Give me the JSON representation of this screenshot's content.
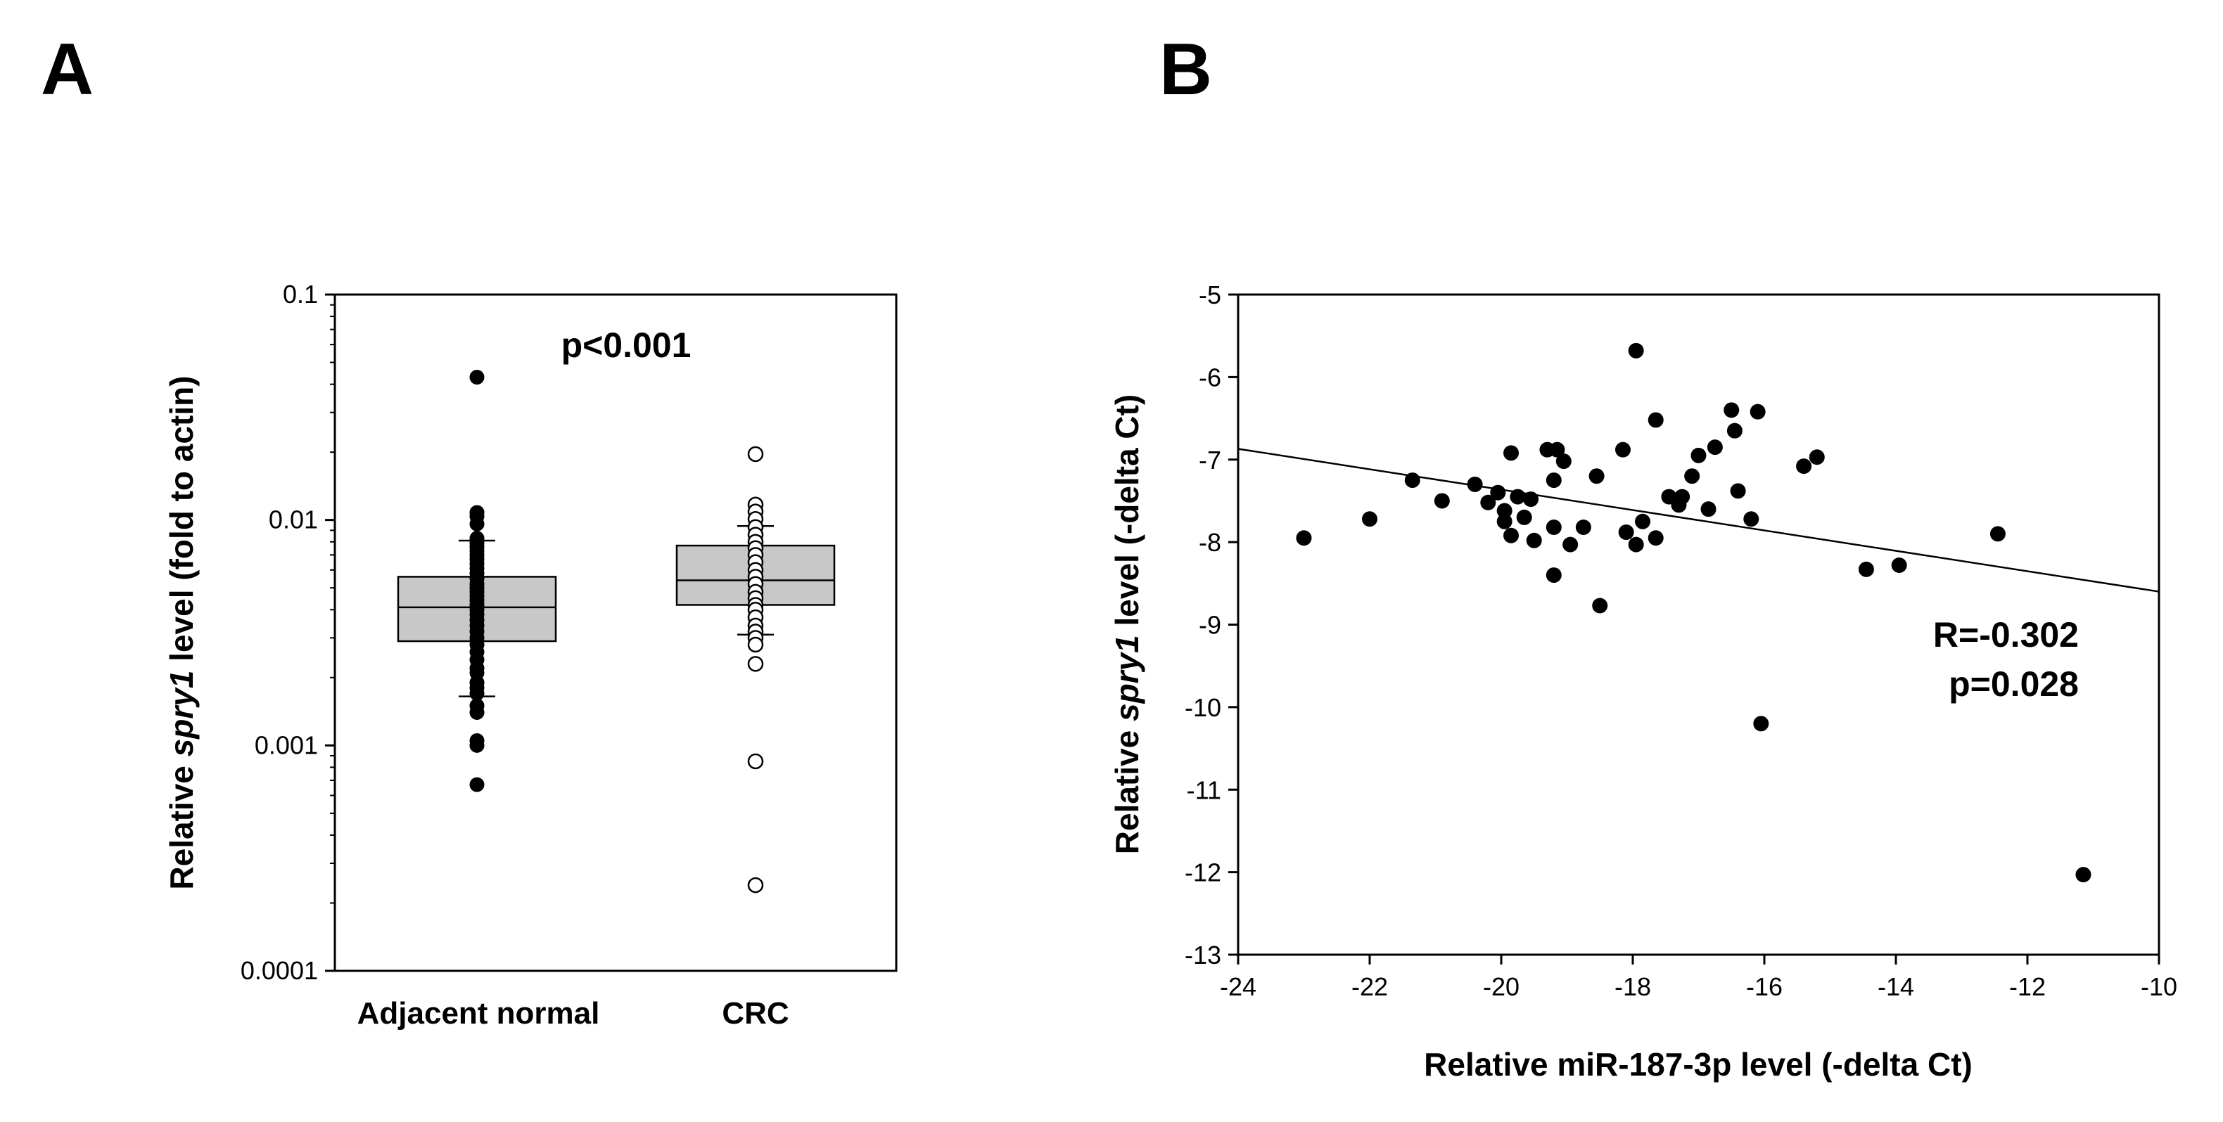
{
  "panels": {
    "a": "A",
    "b": "B"
  },
  "chart_data": [
    {
      "type": "box",
      "id": "A",
      "yscale": "log",
      "ylim": [
        0.0001,
        0.1
      ],
      "yticks": [
        "0.0001",
        "0.001",
        "0.01",
        "0.1"
      ],
      "ylabel_prefix": "Relative ",
      "ylabel_gene": "spry1",
      "ylabel_suffix": " level (fold to actin)",
      "annotation": "p<0.001",
      "categories": [
        "Adjacent normal",
        "CRC"
      ],
      "colors": {
        "box_fill": "#c8c8c8",
        "filled_marker": "#000000",
        "open_marker": "#ffffff"
      },
      "boxes": [
        {
          "category": "Adjacent normal",
          "q1": 0.0029,
          "median": 0.0041,
          "q3": 0.0056,
          "whisker_low": 0.00165,
          "whisker_high": 0.0081,
          "marker": "filled",
          "points": [
            0.043,
            0.0108,
            0.0104,
            0.0096,
            0.0083,
            0.0079,
            0.0076,
            0.0073,
            0.007,
            0.0067,
            0.0064,
            0.0061,
            0.0058,
            0.0055,
            0.0052,
            0.005,
            0.0048,
            0.0046,
            0.0044,
            0.0042,
            0.004,
            0.0038,
            0.0036,
            0.0034,
            0.0032,
            0.003,
            0.0028,
            0.0026,
            0.0024,
            0.0022,
            0.0021,
            0.0019,
            0.0018,
            0.0017,
            0.0015,
            0.0014,
            0.00105,
            0.001,
            0.00067
          ]
        },
        {
          "category": "CRC",
          "q1": 0.0042,
          "median": 0.0054,
          "q3": 0.0077,
          "whisker_low": 0.0031,
          "whisker_high": 0.0094,
          "marker": "open",
          "points": [
            0.0196,
            0.0117,
            0.0109,
            0.0101,
            0.0093,
            0.0086,
            0.008,
            0.0075,
            0.007,
            0.0065,
            0.006,
            0.0056,
            0.0052,
            0.0048,
            0.0045,
            0.0042,
            0.004,
            0.0037,
            0.0034,
            0.0032,
            0.003,
            0.0028,
            0.0023,
            0.00085,
            0.00024
          ]
        }
      ]
    },
    {
      "type": "scatter",
      "id": "B",
      "xlim": [
        -24,
        -10
      ],
      "ylim": [
        -13,
        -5
      ],
      "xticks": [
        -24,
        -22,
        -20,
        -18,
        -16,
        -14,
        -12,
        -10
      ],
      "yticks": [
        -5,
        -6,
        -7,
        -8,
        -9,
        -10,
        -11,
        -12,
        -13
      ],
      "xlabel": "Relative miR-187-3p level (-delta Ct)",
      "ylabel_prefix": "Relative ",
      "ylabel_gene": "spry1",
      "ylabel_suffix": " level (-delta Ct)",
      "annotation_r": "R=-0.302",
      "annotation_p": "p=0.028",
      "trendline": {
        "x": [
          -24,
          -10
        ],
        "y": [
          -6.87,
          -8.6
        ]
      },
      "points": [
        [
          -23.0,
          -7.95
        ],
        [
          -22.0,
          -7.72
        ],
        [
          -21.35,
          -7.25
        ],
        [
          -20.9,
          -7.5
        ],
        [
          -20.4,
          -7.3
        ],
        [
          -20.2,
          -7.52
        ],
        [
          -20.05,
          -7.4
        ],
        [
          -19.95,
          -7.62
        ],
        [
          -19.95,
          -7.75
        ],
        [
          -19.85,
          -7.92
        ],
        [
          -19.85,
          -6.92
        ],
        [
          -19.75,
          -7.45
        ],
        [
          -19.65,
          -7.7
        ],
        [
          -19.5,
          -7.98
        ],
        [
          -19.55,
          -7.48
        ],
        [
          -19.3,
          -6.88
        ],
        [
          -19.15,
          -6.88
        ],
        [
          -19.2,
          -7.25
        ],
        [
          -19.2,
          -7.82
        ],
        [
          -19.2,
          -8.4
        ],
        [
          -19.05,
          -7.02
        ],
        [
          -18.95,
          -8.03
        ],
        [
          -18.75,
          -7.82
        ],
        [
          -18.55,
          -7.2
        ],
        [
          -18.5,
          -8.77
        ],
        [
          -18.15,
          -6.88
        ],
        [
          -18.1,
          -7.88
        ],
        [
          -17.95,
          -5.68
        ],
        [
          -17.95,
          -8.03
        ],
        [
          -17.85,
          -7.75
        ],
        [
          -17.65,
          -6.52
        ],
        [
          -17.65,
          -7.95
        ],
        [
          -17.45,
          -7.45
        ],
        [
          -17.3,
          -7.55
        ],
        [
          -17.25,
          -7.45
        ],
        [
          -17.1,
          -7.2
        ],
        [
          -17.0,
          -6.95
        ],
        [
          -16.85,
          -7.6
        ],
        [
          -16.75,
          -6.85
        ],
        [
          -16.5,
          -6.4
        ],
        [
          -16.45,
          -6.65
        ],
        [
          -16.4,
          -7.38
        ],
        [
          -16.2,
          -7.72
        ],
        [
          -16.1,
          -6.42
        ],
        [
          -16.05,
          -10.2
        ],
        [
          -15.4,
          -7.08
        ],
        [
          -15.2,
          -6.97
        ],
        [
          -14.45,
          -8.33
        ],
        [
          -13.95,
          -8.28
        ],
        [
          -12.45,
          -7.9
        ],
        [
          -11.15,
          -12.03
        ]
      ],
      "marker_color": "#000000"
    }
  ]
}
